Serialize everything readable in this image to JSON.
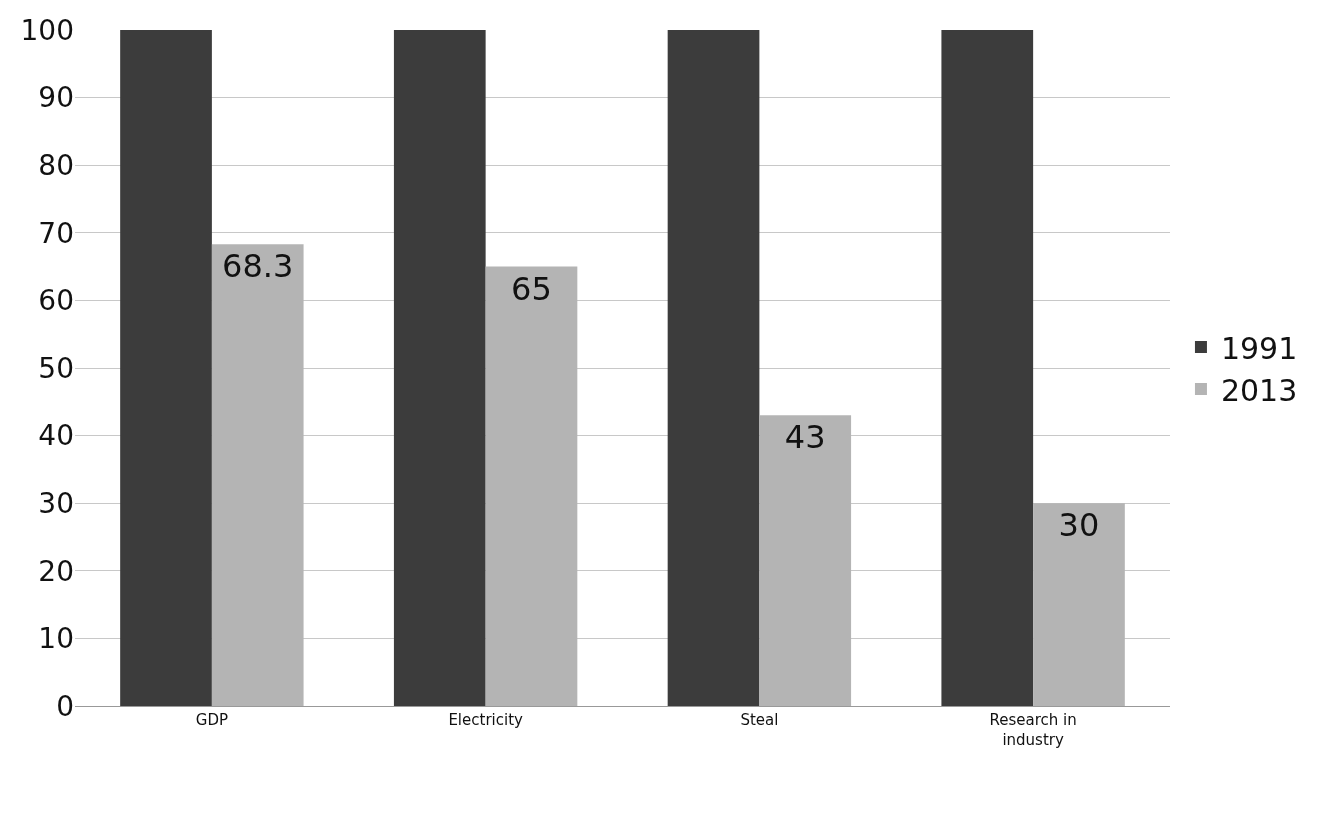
{
  "chart_data": {
    "type": "bar",
    "categories": [
      "GDP",
      "Electricity",
      "Steal",
      "Research in industry"
    ],
    "series": [
      {
        "name": "1991",
        "color": "#3c3c3c",
        "values": [
          100,
          100,
          100,
          100
        ]
      },
      {
        "name": "2013",
        "color": "#b4b4b4",
        "values": [
          68.3,
          65,
          43,
          30
        ],
        "value_labels": [
          "68.3",
          "65",
          "43",
          "30"
        ]
      }
    ],
    "ylim": [
      0,
      100
    ],
    "yticks": [
      0,
      10,
      20,
      30,
      40,
      50,
      60,
      70,
      80,
      90,
      100
    ],
    "grid": "y",
    "legend": "right"
  }
}
